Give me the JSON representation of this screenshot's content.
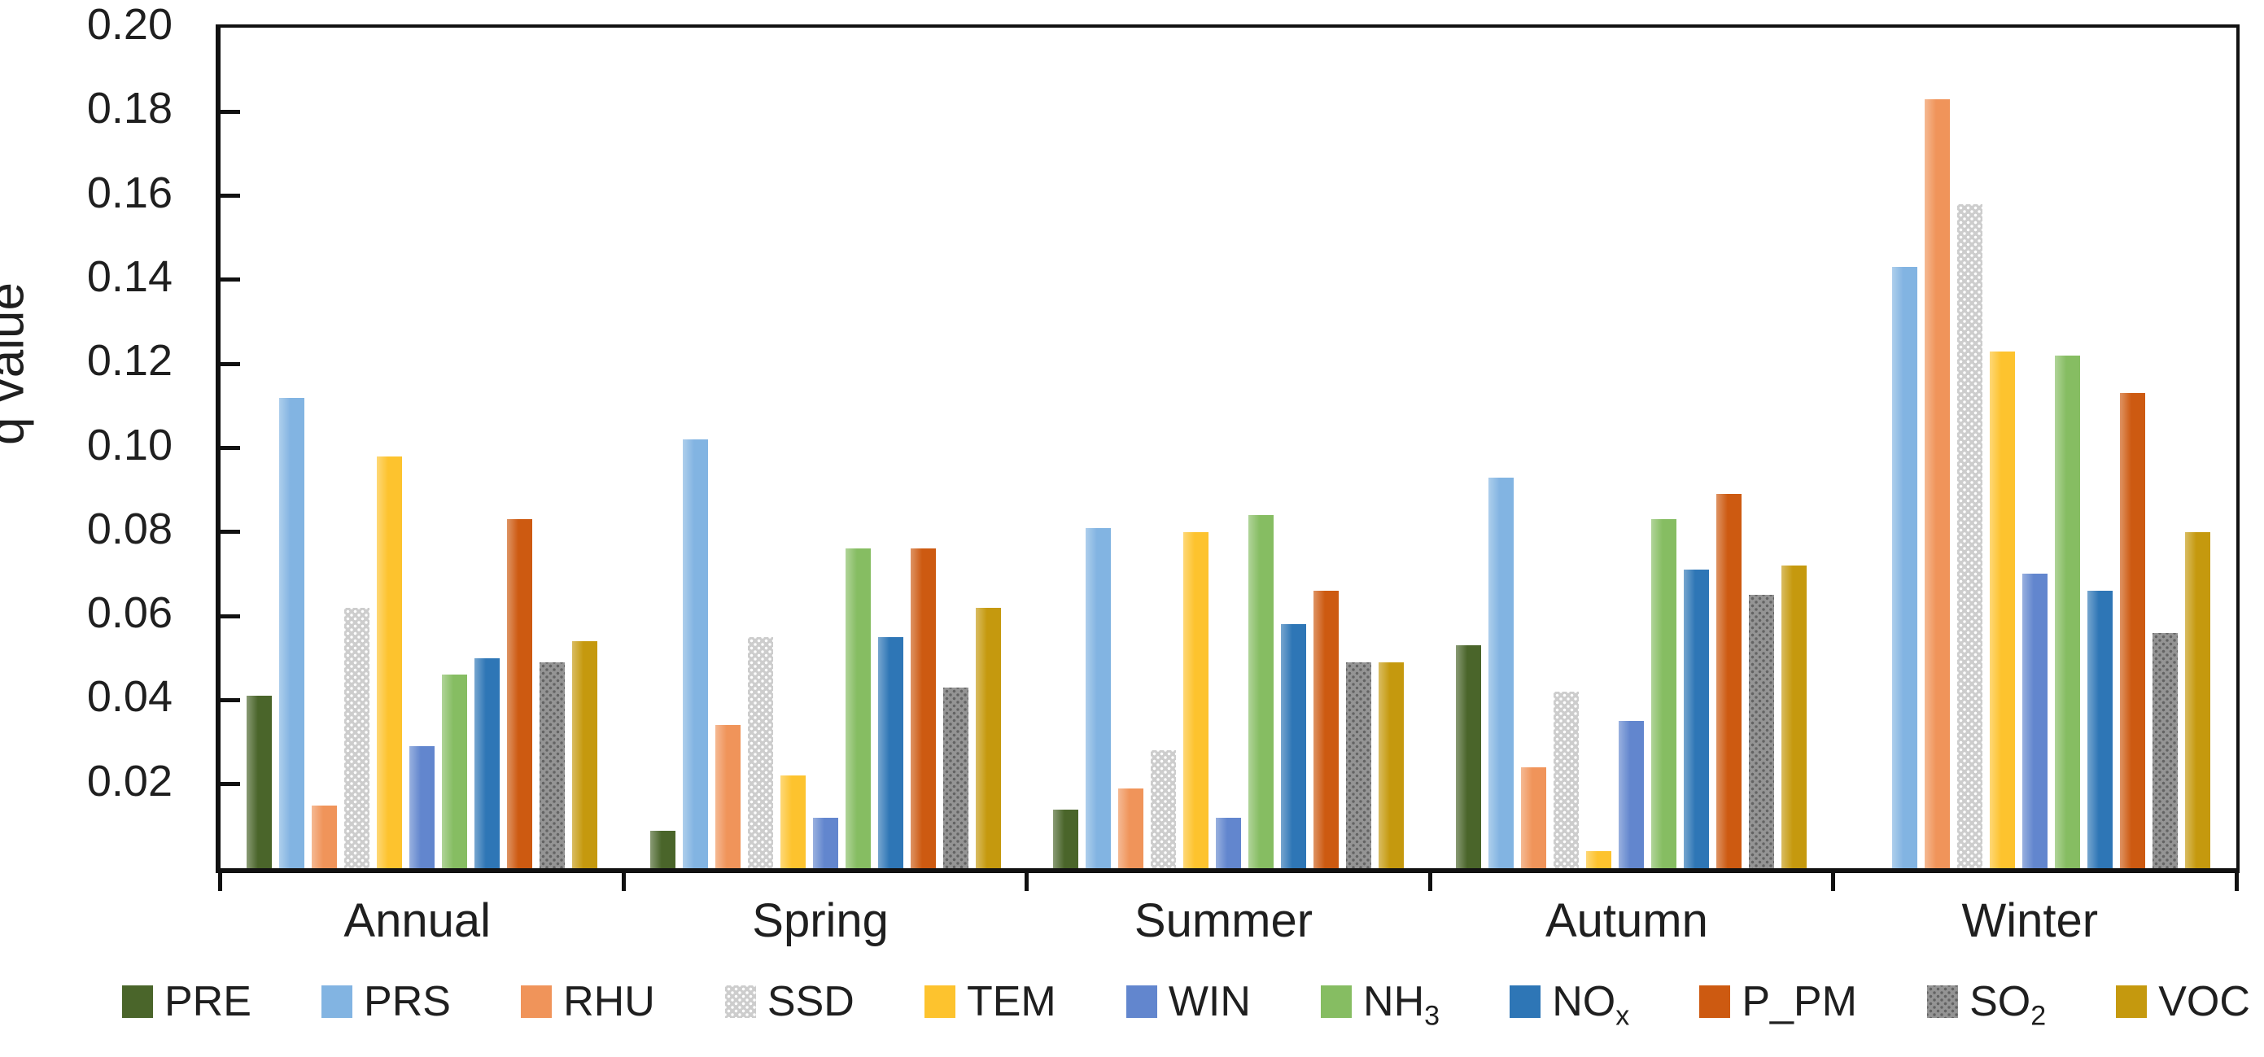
{
  "figure": {
    "kind": "grouped-bar-chart",
    "background": "#ffffff",
    "axis_color": "#111111",
    "text_color": "#1f1f1f"
  },
  "y_axis": {
    "title": "q value",
    "tick_labels": [
      "0.20",
      "0.18",
      "0.16",
      "0.14",
      "0.12",
      "0.10",
      "0.08",
      "0.06",
      "0.04",
      "0.02"
    ],
    "min": 0,
    "max": 0.2,
    "tick_step": 0.02
  },
  "x_axis": {
    "categories": [
      "Annual",
      "Spring",
      "Summer",
      "Autumn",
      "Winter"
    ]
  },
  "legend": {
    "position": "bottom",
    "items": [
      {
        "text": "PRE",
        "sub": "",
        "color": "#4a652a",
        "pattern": ""
      },
      {
        "text": "PRS",
        "sub": "",
        "color": "#82b4e2",
        "pattern": ""
      },
      {
        "text": "RHU",
        "sub": "",
        "color": "#f0945a",
        "pattern": ""
      },
      {
        "text": "SSD",
        "sub": "",
        "color": "#cdcdcd",
        "pattern": "dots-light"
      },
      {
        "text": "TEM",
        "sub": "",
        "color": "#fdc32e",
        "pattern": ""
      },
      {
        "text": "WIN",
        "sub": "",
        "color": "#6286ce",
        "pattern": ""
      },
      {
        "text": "NH",
        "sub": "3",
        "color": "#86bd62",
        "pattern": ""
      },
      {
        "text": "NO",
        "sub": "x",
        "color": "#2e76b6",
        "pattern": ""
      },
      {
        "text": "P_PM",
        "sub": "",
        "color": "#cd5a11",
        "pattern": ""
      },
      {
        "text": "SO",
        "sub": "2",
        "color": "#949494",
        "pattern": "dots-dark"
      },
      {
        "text": "VOC",
        "sub": "",
        "color": "#c5990e",
        "pattern": ""
      }
    ]
  },
  "chart_data": {
    "type": "bar",
    "title": "",
    "xlabel": "",
    "ylabel": "q value",
    "ylim": [
      0,
      0.2
    ],
    "grid": false,
    "legend_position": "bottom",
    "categories": [
      "Annual",
      "Spring",
      "Summer",
      "Autumn",
      "Winter"
    ],
    "series": [
      {
        "name": "PRE",
        "color": "#4a652a",
        "pattern": "",
        "values": [
          0.041,
          0.009,
          0.014,
          0.053,
          0.0
        ]
      },
      {
        "name": "PRS",
        "color": "#82b4e2",
        "pattern": "",
        "values": [
          0.112,
          0.102,
          0.081,
          0.093,
          0.143
        ]
      },
      {
        "name": "RHU",
        "color": "#f0945a",
        "pattern": "",
        "values": [
          0.015,
          0.034,
          0.019,
          0.024,
          0.183
        ]
      },
      {
        "name": "SSD",
        "color": "#cdcdcd",
        "pattern": "dots-light",
        "values": [
          0.062,
          0.055,
          0.028,
          0.042,
          0.158
        ]
      },
      {
        "name": "TEM",
        "color": "#fdc32e",
        "pattern": "",
        "values": [
          0.098,
          0.022,
          0.08,
          0.004,
          0.123
        ]
      },
      {
        "name": "WIN",
        "color": "#6286ce",
        "pattern": "",
        "values": [
          0.029,
          0.012,
          0.012,
          0.035,
          0.07
        ]
      },
      {
        "name": "NH3",
        "color": "#86bd62",
        "pattern": "",
        "values": [
          0.046,
          0.076,
          0.084,
          0.083,
          0.122
        ]
      },
      {
        "name": "NOx",
        "color": "#2e76b6",
        "pattern": "",
        "values": [
          0.05,
          0.055,
          0.058,
          0.071,
          0.066
        ]
      },
      {
        "name": "P_PM",
        "color": "#cd5a11",
        "pattern": "",
        "values": [
          0.083,
          0.076,
          0.066,
          0.089,
          0.113
        ]
      },
      {
        "name": "SO2",
        "color": "#949494",
        "pattern": "dots-dark",
        "values": [
          0.049,
          0.043,
          0.049,
          0.065,
          0.056
        ]
      },
      {
        "name": "VOC",
        "color": "#c5990e",
        "pattern": "",
        "values": [
          0.054,
          0.062,
          0.049,
          0.072,
          0.08
        ]
      }
    ]
  }
}
